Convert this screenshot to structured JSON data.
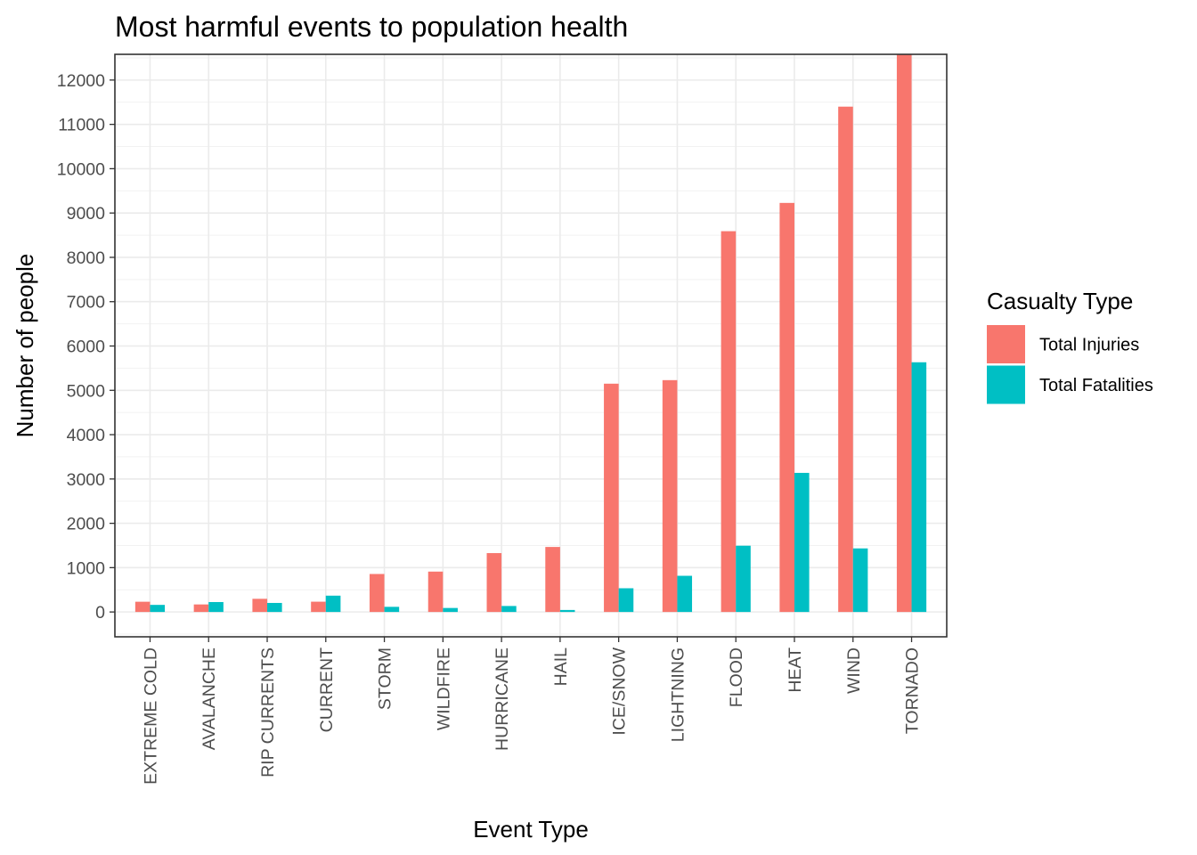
{
  "chart_data": {
    "type": "bar",
    "title": "Most harmful events to population health",
    "xlabel": "Event Type",
    "ylabel": "Number of people",
    "categories": [
      "EXTREME COLD",
      "AVALANCHE",
      "RIP CURRENTS",
      "CURRENT",
      "STORM",
      "WILDFIRE",
      "HURRICANE",
      "HAIL",
      "ICE/SNOW",
      "LIGHTNING",
      "FLOOD",
      "HEAT",
      "WIND",
      "TORNADO"
    ],
    "series": [
      {
        "name": "Total Injuries",
        "color": "#F8766D",
        "values": [
          231,
          170,
          297,
          232,
          857,
          911,
          1328,
          1467,
          5150,
          5230,
          8590,
          9228,
          11400,
          12580
        ]
      },
      {
        "name": "Total Fatalities",
        "color": "#00BFC4",
        "values": [
          160,
          224,
          204,
          368,
          116,
          90,
          135,
          45,
          535,
          816,
          1495,
          3138,
          1434,
          5633
        ]
      }
    ],
    "ylim": [
      -560,
      12580
    ],
    "yticks": [
      0,
      1000,
      2000,
      3000,
      4000,
      5000,
      6000,
      7000,
      8000,
      9000,
      10000,
      11000,
      12000
    ],
    "grid": true,
    "legend": {
      "title": "Casualty Type",
      "position": "right"
    },
    "x_tick_rotation": "vertical"
  }
}
